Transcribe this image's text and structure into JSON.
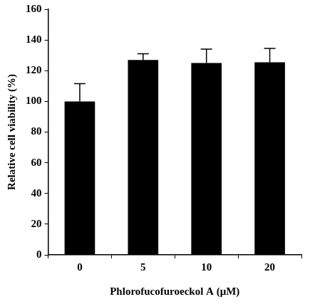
{
  "chart_data": {
    "type": "bar",
    "x_label": "Phlorofucofuroeckol A (μM)",
    "y_label": "Relative cell viability (%)",
    "categories": [
      "0",
      "5",
      "10",
      "20"
    ],
    "values": [
      100,
      127,
      125,
      125.5
    ],
    "errors": [
      11.5,
      4,
      9,
      9
    ],
    "color": "#000000",
    "ylim": [
      0,
      160
    ],
    "yticks": [
      0,
      20,
      40,
      60,
      80,
      100,
      120,
      140,
      160
    ],
    "grid": false
  }
}
